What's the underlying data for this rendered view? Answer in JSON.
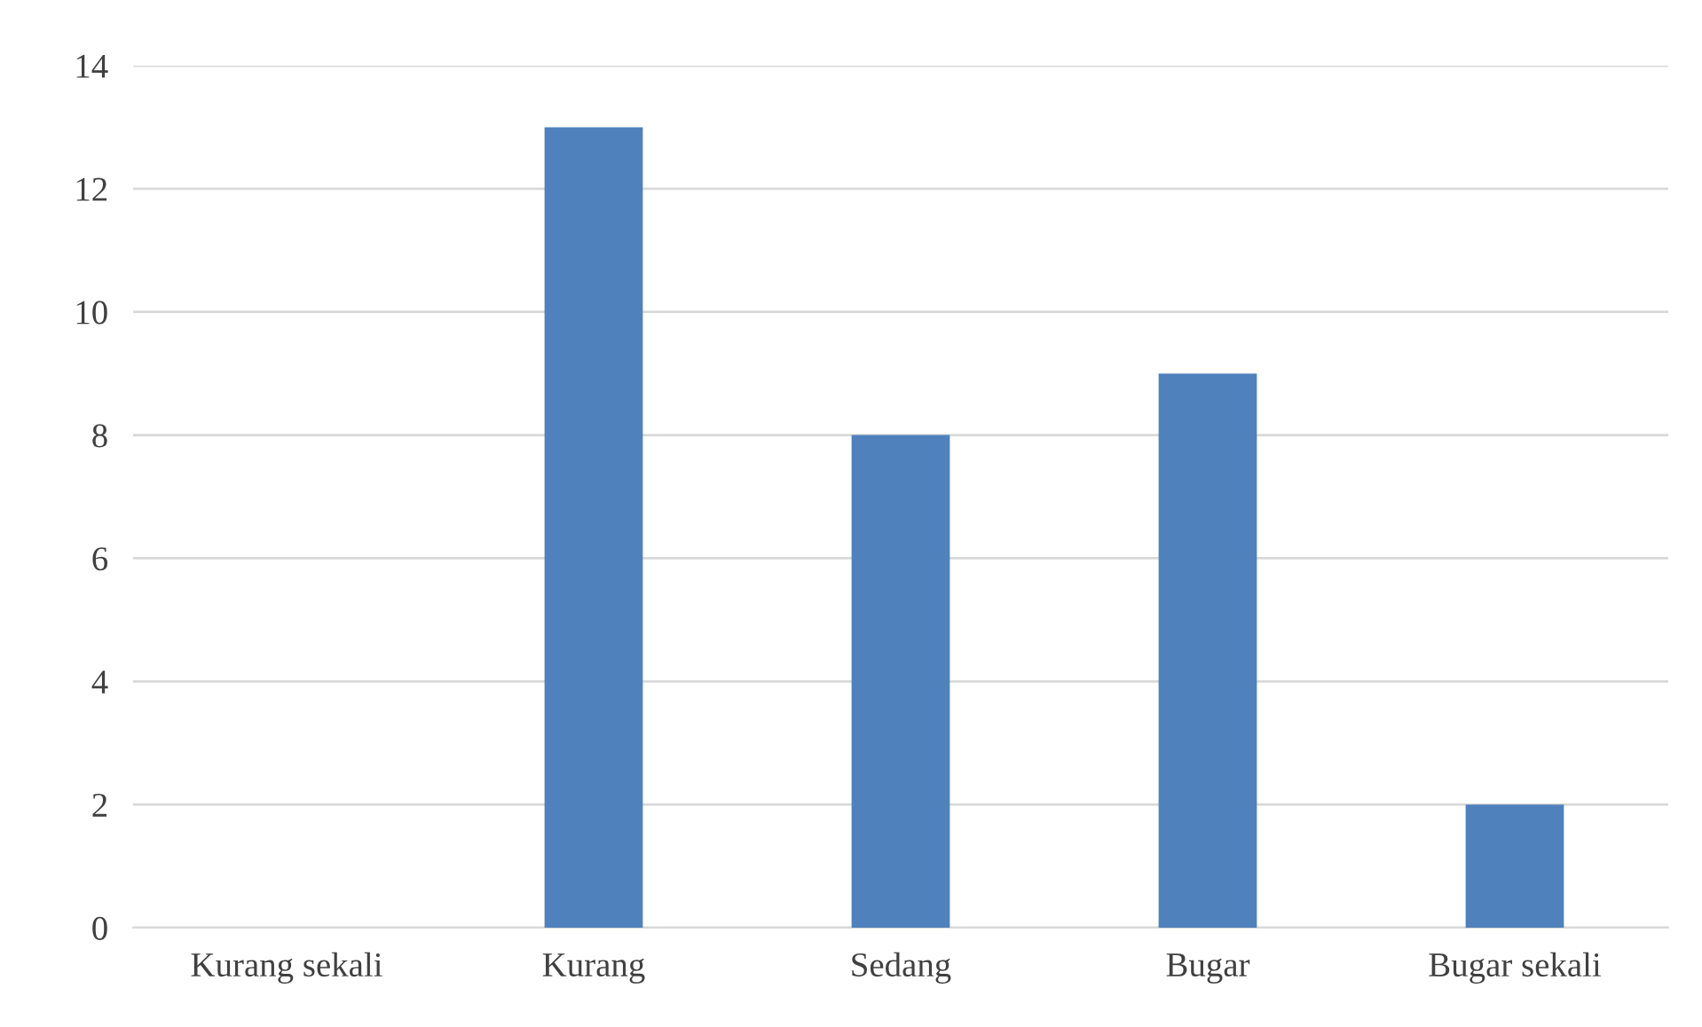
{
  "chart_data": {
    "type": "bar",
    "categories": [
      "Kurang sekali",
      "Kurang",
      "Sedang",
      "Bugar",
      "Bugar sekali"
    ],
    "values": [
      0,
      13,
      8,
      9,
      2
    ],
    "color": "#4f81bd",
    "ylim": [
      0,
      14
    ],
    "yticks": [
      0,
      2,
      4,
      6,
      8,
      10,
      12,
      14
    ],
    "grid": "y",
    "legend": false
  }
}
